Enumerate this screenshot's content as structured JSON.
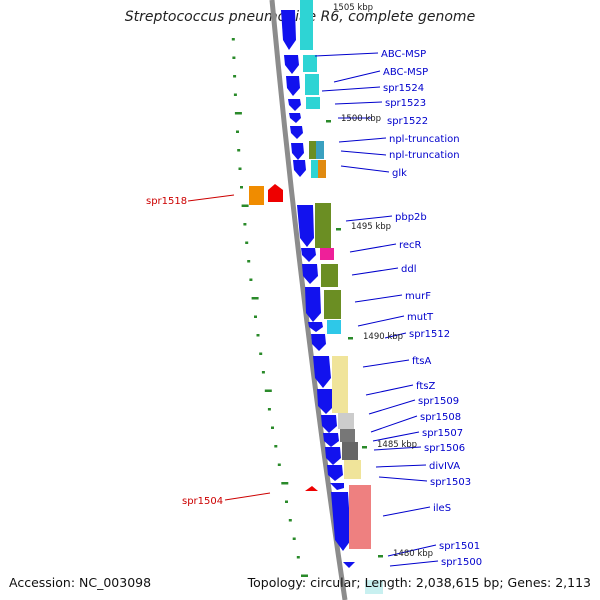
{
  "title": "Streptococcus pneumoniae R6, complete genome",
  "accession": "Accession: NC_003098",
  "topology": "Topology: circular; Length: 2,038,615 bp; Genes: 2,113",
  "colors": {
    "forward": "#1010ee",
    "reverse_red": "#ee0000",
    "label_blue": "#0000cc",
    "label_red": "#cc0000",
    "tick": "#228b22"
  },
  "scale_labels": [
    "1505 kbp",
    "1500 kbp",
    "1495 kbp",
    "1490 kbp",
    "1485 kbp",
    "1480 kbp"
  ],
  "genes_right": [
    "ABC-MSP",
    "ABC-MSP",
    "spr1524",
    "spr1523",
    "spr1522",
    "npl-truncation",
    "npl-truncation",
    "glk",
    "pbp2b",
    "recR",
    "ddl",
    "murF",
    "mutT",
    "spr1512",
    "ftsA",
    "ftsZ",
    "spr1509",
    "spr1508",
    "spr1507",
    "spr1506",
    "divIVA",
    "spr1503",
    "ileS",
    "spr1501",
    "spr1500"
  ],
  "genes_left": [
    "spr1518",
    "spr1504"
  ]
}
